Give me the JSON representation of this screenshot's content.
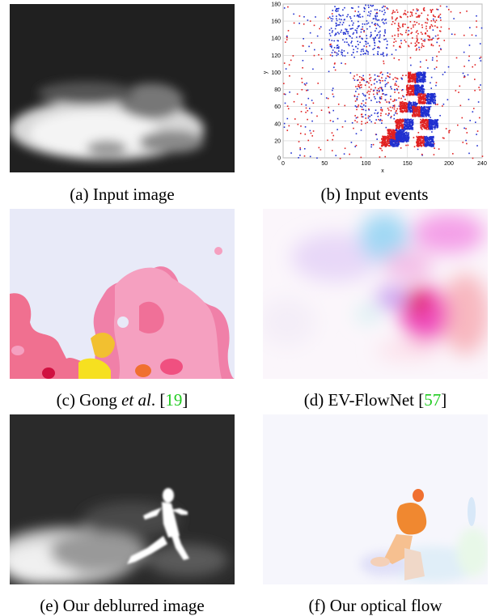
{
  "figure": {
    "captions": {
      "a": "(a) Input image",
      "b": "(b) Input events",
      "c_pre": "(c) Gong ",
      "c_em": "et al",
      "c_post": ". [",
      "c_ref": "19",
      "c_close": "]",
      "d_pre": "(d) EV-FlowNet [",
      "d_ref": "57",
      "d_close": "]",
      "e": "(e) Our deblurred image",
      "f": "(f) Our optical flow"
    },
    "colors": {
      "citation": "#22cc22",
      "positive_event": "#e02020",
      "negative_event": "#2030d0"
    }
  },
  "chart_data": {
    "type": "scatter",
    "xlabel": "x",
    "ylabel": "y",
    "xlim": [
      0,
      240
    ],
    "ylim": [
      0,
      180
    ],
    "xticks": [
      0,
      50,
      100,
      150,
      200,
      240
    ],
    "yticks": [
      0,
      20,
      40,
      60,
      80,
      100,
      120,
      140,
      160,
      180
    ],
    "grid": true,
    "series": [
      {
        "polarity": "positive",
        "color": "#e02020"
      },
      {
        "polarity": "negative",
        "color": "#2030d0"
      }
    ]
  }
}
